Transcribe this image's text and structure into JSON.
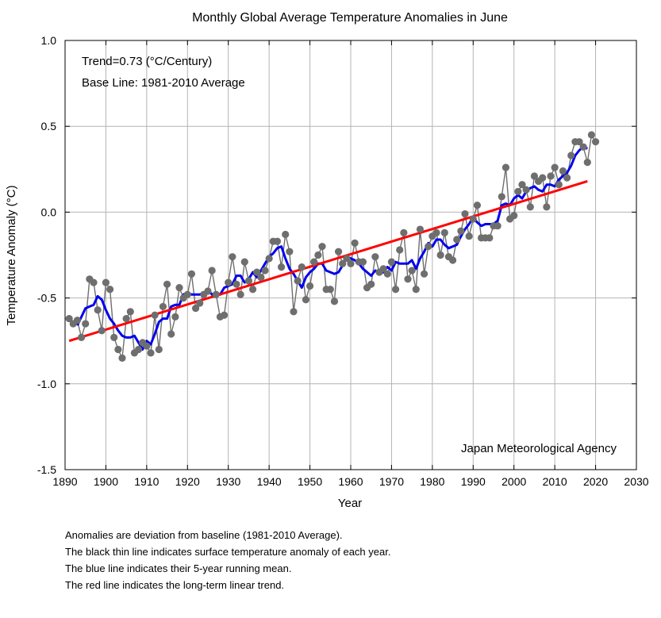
{
  "chart_data": {
    "type": "line",
    "title": "Monthly Global Average Temperature Anomalies in June",
    "xlabel": "Year",
    "ylabel": "Temperature Anomaly (°C)",
    "xlim": [
      1890,
      2030
    ],
    "ylim": [
      -1.5,
      1.0
    ],
    "x_ticks": [
      1890,
      1900,
      1910,
      1920,
      1930,
      1940,
      1950,
      1960,
      1970,
      1980,
      1990,
      2000,
      2010,
      2020,
      2030
    ],
    "y_ticks": [
      -1.5,
      -1.0,
      -0.5,
      0.0,
      0.5,
      1.0
    ],
    "y_tick_labels": [
      "-1.5",
      "-1.0",
      "-0.5",
      "0.0",
      "0.5",
      "1.0"
    ],
    "grid": true,
    "annotations": {
      "trend": "Trend=0.73 (°C/Century)",
      "baseline": "Base Line: 1981-2010 Average",
      "source": "Japan Meteorological Agency"
    },
    "colors": {
      "annual": "#6e6e6e",
      "running_mean": "#0000ee",
      "trend": "#ff0000",
      "grid": "#b4b4b4"
    },
    "x": [
      1891,
      1892,
      1893,
      1894,
      1895,
      1896,
      1897,
      1898,
      1899,
      1900,
      1901,
      1902,
      1903,
      1904,
      1905,
      1906,
      1907,
      1908,
      1909,
      1910,
      1911,
      1912,
      1913,
      1914,
      1915,
      1916,
      1917,
      1918,
      1919,
      1920,
      1921,
      1922,
      1923,
      1924,
      1925,
      1926,
      1927,
      1928,
      1929,
      1930,
      1931,
      1932,
      1933,
      1934,
      1935,
      1936,
      1937,
      1938,
      1939,
      1940,
      1941,
      1942,
      1943,
      1944,
      1945,
      1946,
      1947,
      1948,
      1949,
      1950,
      1951,
      1952,
      1953,
      1954,
      1955,
      1956,
      1957,
      1958,
      1959,
      1960,
      1961,
      1962,
      1963,
      1964,
      1965,
      1966,
      1967,
      1968,
      1969,
      1970,
      1971,
      1972,
      1973,
      1974,
      1975,
      1976,
      1977,
      1978,
      1979,
      1980,
      1981,
      1982,
      1983,
      1984,
      1985,
      1986,
      1987,
      1988,
      1989,
      1990,
      1991,
      1992,
      1993,
      1994,
      1995,
      1996,
      1997,
      1998,
      1999,
      2000,
      2001,
      2002,
      2003,
      2004,
      2005,
      2006,
      2007,
      2008,
      2009,
      2010,
      2011,
      2012,
      2013,
      2014,
      2015,
      2016,
      2017,
      2018,
      2019,
      2020
    ],
    "series": [
      {
        "key": "annual",
        "values": [
          -0.62,
          -0.65,
          -0.63,
          -0.73,
          -0.65,
          -0.39,
          -0.41,
          -0.57,
          -0.69,
          -0.41,
          -0.45,
          -0.73,
          -0.8,
          -0.85,
          -0.62,
          -0.58,
          -0.82,
          -0.8,
          -0.76,
          -0.78,
          -0.82,
          -0.6,
          -0.8,
          -0.55,
          -0.42,
          -0.71,
          -0.61,
          -0.44,
          -0.5,
          -0.48,
          -0.36,
          -0.56,
          -0.53,
          -0.48,
          -0.46,
          -0.34,
          -0.48,
          -0.61,
          -0.6,
          -0.41,
          -0.26,
          -0.42,
          -0.48,
          -0.29,
          -0.4,
          -0.45,
          -0.35,
          -0.38,
          -0.34,
          -0.27,
          -0.17,
          -0.17,
          -0.32,
          -0.13,
          -0.23,
          -0.58,
          -0.4,
          -0.32,
          -0.51,
          -0.43,
          -0.29,
          -0.25,
          -0.2,
          -0.45,
          -0.45,
          -0.52,
          -0.23,
          -0.3,
          -0.27,
          -0.3,
          -0.18,
          -0.29,
          -0.29,
          -0.44,
          -0.42,
          -0.26,
          -0.35,
          -0.33,
          -0.36,
          -0.29,
          -0.45,
          -0.22,
          -0.12,
          -0.39,
          -0.34,
          -0.45,
          -0.1,
          -0.36,
          -0.2,
          -0.14,
          -0.12,
          -0.25,
          -0.12,
          -0.26,
          -0.28,
          -0.16,
          -0.11,
          -0.01,
          -0.14,
          -0.04,
          0.04,
          -0.15,
          -0.15,
          -0.15,
          -0.08,
          -0.08,
          0.09,
          0.26,
          -0.04,
          -0.02,
          0.12,
          0.16,
          0.13,
          0.03,
          0.21,
          0.18,
          0.2,
          0.03,
          0.21,
          0.26,
          0.16,
          0.24,
          0.2,
          0.33,
          0.41,
          0.41,
          0.38,
          0.29,
          0.45,
          0.41
        ]
      },
      {
        "key": "running_mean",
        "x": [
          1893,
          1894,
          1895,
          1896,
          1897,
          1898,
          1899,
          1900,
          1901,
          1902,
          1903,
          1904,
          1905,
          1906,
          1907,
          1908,
          1909,
          1910,
          1911,
          1912,
          1913,
          1914,
          1915,
          1916,
          1917,
          1918,
          1919,
          1920,
          1921,
          1922,
          1923,
          1924,
          1925,
          1926,
          1927,
          1928,
          1929,
          1930,
          1931,
          1932,
          1933,
          1934,
          1935,
          1936,
          1937,
          1938,
          1939,
          1940,
          1941,
          1942,
          1943,
          1944,
          1945,
          1946,
          1947,
          1948,
          1949,
          1950,
          1951,
          1952,
          1953,
          1954,
          1955,
          1956,
          1957,
          1958,
          1959,
          1960,
          1961,
          1962,
          1963,
          1964,
          1965,
          1966,
          1967,
          1968,
          1969,
          1970,
          1971,
          1972,
          1973,
          1974,
          1975,
          1976,
          1977,
          1978,
          1979,
          1980,
          1981,
          1982,
          1983,
          1984,
          1985,
          1986,
          1987,
          1988,
          1989,
          1990,
          1991,
          1992,
          1993,
          1994,
          1995,
          1996,
          1997,
          1998,
          1999,
          2000,
          2001,
          2002,
          2003,
          2004,
          2005,
          2006,
          2007,
          2008,
          2009,
          2010,
          2011,
          2012,
          2013,
          2014,
          2015,
          2016,
          2017,
          2018
        ],
        "values": [
          -0.66,
          -0.61,
          -0.56,
          -0.55,
          -0.54,
          -0.49,
          -0.51,
          -0.57,
          -0.62,
          -0.65,
          -0.69,
          -0.72,
          -0.73,
          -0.73,
          -0.72,
          -0.76,
          -0.8,
          -0.75,
          -0.77,
          -0.71,
          -0.64,
          -0.62,
          -0.62,
          -0.55,
          -0.54,
          -0.54,
          -0.48,
          -0.47,
          -0.48,
          -0.48,
          -0.48,
          -0.47,
          -0.45,
          -0.48,
          -0.47,
          -0.48,
          -0.44,
          -0.43,
          -0.42,
          -0.37,
          -0.37,
          -0.41,
          -0.39,
          -0.35,
          -0.38,
          -0.34,
          -0.3,
          -0.26,
          -0.24,
          -0.21,
          -0.2,
          -0.27,
          -0.33,
          -0.36,
          -0.4,
          -0.44,
          -0.38,
          -0.35,
          -0.33,
          -0.3,
          -0.3,
          -0.34,
          -0.35,
          -0.36,
          -0.35,
          -0.31,
          -0.26,
          -0.27,
          -0.28,
          -0.3,
          -0.33,
          -0.35,
          -0.37,
          -0.34,
          -0.36,
          -0.35,
          -0.32,
          -0.34,
          -0.29,
          -0.3,
          -0.3,
          -0.3,
          -0.28,
          -0.33,
          -0.27,
          -0.23,
          -0.18,
          -0.2,
          -0.16,
          -0.16,
          -0.19,
          -0.21,
          -0.2,
          -0.19,
          -0.14,
          -0.1,
          -0.07,
          -0.03,
          -0.06,
          -0.08,
          -0.07,
          -0.07,
          -0.07,
          -0.05,
          0.04,
          0.05,
          0.04,
          0.08,
          0.1,
          0.08,
          0.12,
          0.14,
          0.15,
          0.13,
          0.12,
          0.16,
          0.16,
          0.15,
          0.19,
          0.21,
          0.23,
          0.27,
          0.33,
          0.36,
          0.38,
          0.37
        ]
      },
      {
        "key": "trend",
        "x": [
          1891,
          2018
        ],
        "values": [
          -0.75,
          0.18
        ]
      }
    ]
  },
  "notes": [
    "Anomalies are deviation from baseline (1981-2010 Average).",
    "The black thin line indicates surface temperature anomaly of each year.",
    "The blue line indicates their 5-year running mean.",
    "The red line indicates the long-term linear trend."
  ]
}
